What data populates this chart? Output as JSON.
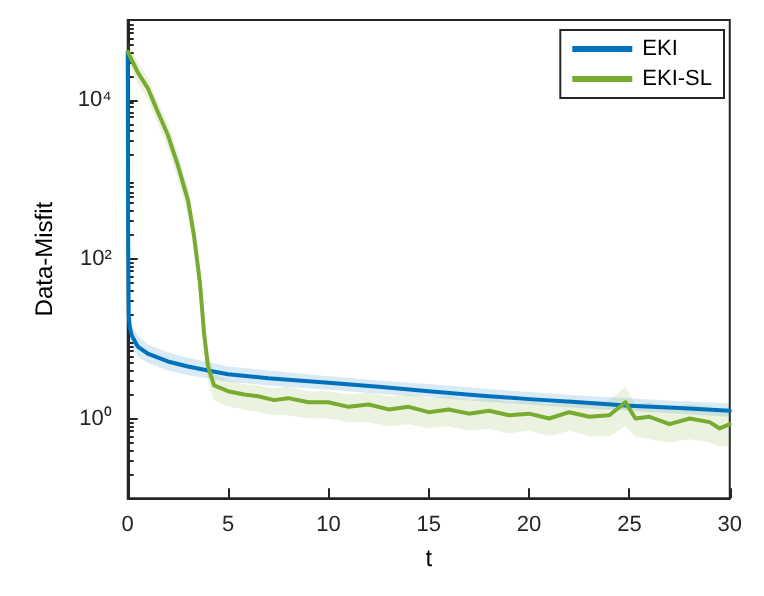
{
  "chart_data": {
    "type": "line",
    "xlabel": "t",
    "ylabel": "Data-Misfit",
    "log": "y",
    "xlim": [
      0,
      30
    ],
    "xticks": [
      0,
      5,
      10,
      15,
      20,
      25,
      30
    ],
    "ylim": [
      0.1,
      100000
    ],
    "yticks": [
      {
        "value": 1,
        "label": "10⁰"
      },
      {
        "value": 100,
        "label": "10²"
      },
      {
        "value": 10000,
        "label": "10⁴"
      }
    ],
    "legend": "top right",
    "grid": false,
    "line_style": "solid",
    "marker": "none",
    "series": [
      {
        "name": "EKI",
        "color": "#0072bd",
        "x": [
          0,
          0.02,
          0.05,
          0.1,
          0.2,
          0.5,
          1,
          2,
          3,
          4,
          5,
          7,
          10,
          12.5,
          15,
          17.5,
          20,
          22.5,
          25,
          27.5,
          30
        ],
        "values": [
          40000,
          200,
          20,
          14,
          11,
          8,
          6.5,
          5.2,
          4.5,
          4,
          3.6,
          3.2,
          2.8,
          2.5,
          2.2,
          1.95,
          1.75,
          1.6,
          1.45,
          1.35,
          1.25
        ],
        "lower": [
          30000,
          120,
          14,
          10,
          8,
          6,
          5,
          4,
          3.5,
          3.2,
          2.9,
          2.6,
          2.3,
          2.05,
          1.85,
          1.65,
          1.5,
          1.35,
          1.25,
          1.15,
          1.05
        ],
        "upper": [
          50000,
          300,
          27,
          19,
          15,
          11,
          8.5,
          6.8,
          5.8,
          5.1,
          4.5,
          4,
          3.4,
          3,
          2.7,
          2.4,
          2.15,
          1.95,
          1.8,
          1.65,
          1.55
        ]
      },
      {
        "name": "EKI-SL",
        "color": "#77ac30",
        "x": [
          0,
          0.5,
          1,
          1.5,
          2,
          2.5,
          3,
          3.3,
          3.6,
          3.8,
          4,
          4.3,
          5,
          5.8,
          6.5,
          7.3,
          8,
          9,
          10,
          11,
          12,
          13,
          14,
          15,
          16,
          17,
          18,
          19,
          20,
          21,
          22,
          23,
          24,
          24.8,
          25.3,
          26,
          27,
          28,
          29,
          29.5,
          30
        ],
        "values": [
          40000,
          22000,
          14000,
          7000,
          3600,
          1500,
          550,
          200,
          50,
          12,
          4.5,
          2.6,
          2.2,
          2,
          1.9,
          1.7,
          1.8,
          1.6,
          1.6,
          1.4,
          1.5,
          1.3,
          1.4,
          1.2,
          1.3,
          1.15,
          1.25,
          1.1,
          1.15,
          1,
          1.2,
          1.05,
          1.1,
          1.6,
          1,
          1.05,
          0.85,
          1,
          0.9,
          0.75,
          0.85
        ],
        "lower": [
          30000,
          16000,
          10000,
          5000,
          2500,
          1000,
          350,
          120,
          30,
          7,
          2.8,
          1.7,
          1.4,
          1.3,
          1.2,
          1.1,
          1.1,
          1,
          1,
          0.9,
          0.9,
          0.8,
          0.85,
          0.75,
          0.8,
          0.7,
          0.75,
          0.65,
          0.7,
          0.6,
          0.7,
          0.6,
          0.6,
          0.8,
          0.6,
          0.55,
          0.5,
          0.55,
          0.5,
          0.45,
          0.45
        ],
        "upper": [
          55000,
          30000,
          19000,
          9500,
          5000,
          2100,
          800,
          300,
          80,
          20,
          7,
          3.6,
          3,
          2.7,
          2.6,
          2.4,
          2.5,
          2.2,
          2.2,
          2,
          2.1,
          1.9,
          2,
          1.8,
          1.9,
          1.7,
          1.8,
          1.6,
          1.7,
          1.5,
          1.8,
          1.6,
          1.7,
          2.5,
          1.5,
          1.6,
          1.4,
          1.5,
          1.4,
          1.2,
          1.3
        ]
      }
    ]
  }
}
